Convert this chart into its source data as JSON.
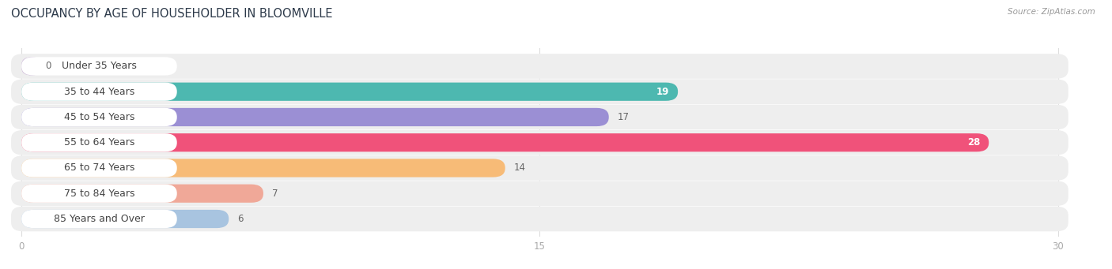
{
  "title": "OCCUPANCY BY AGE OF HOUSEHOLDER IN BLOOMVILLE",
  "source": "Source: ZipAtlas.com",
  "categories": [
    "Under 35 Years",
    "35 to 44 Years",
    "45 to 54 Years",
    "55 to 64 Years",
    "65 to 74 Years",
    "75 to 84 Years",
    "85 Years and Over"
  ],
  "values": [
    0,
    19,
    17,
    28,
    14,
    7,
    6
  ],
  "bar_colors": [
    "#c9b3d5",
    "#4db8b0",
    "#9b8fd4",
    "#f0527a",
    "#f7bb77",
    "#f0a898",
    "#a8c4e0"
  ],
  "row_bg_color": "#eeeeee",
  "xlim_max": 30,
  "xticks": [
    0,
    15,
    30
  ],
  "title_fontsize": 10.5,
  "label_fontsize": 9,
  "value_fontsize": 8.5,
  "background_color": "#ffffff",
  "source_color": "#999999",
  "tick_color": "#aaaaaa",
  "grid_color": "#dddddd",
  "label_text_color": "#444444",
  "value_inside_color": "#ffffff",
  "value_outside_color": "#666666",
  "inside_threshold": 19
}
